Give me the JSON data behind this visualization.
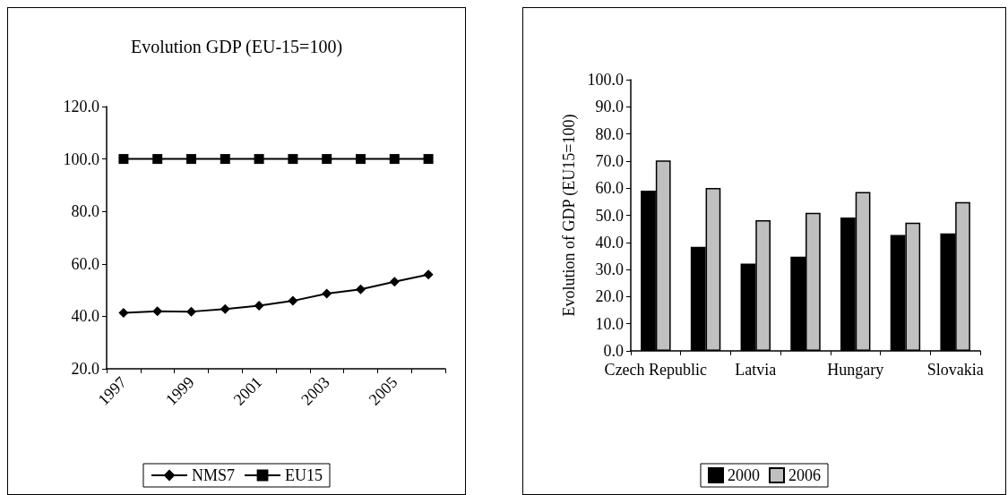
{
  "chart_data": [
    {
      "type": "line",
      "title": "Evolution GDP (EU-15=100)",
      "categories": [
        "1997",
        null,
        "1999",
        null,
        "2001",
        null,
        "2003",
        null,
        "2005",
        null
      ],
      "series": [
        {
          "name": "NMS7",
          "color": "#000000",
          "marker": "diamond",
          "values": [
            41.3,
            41.9,
            41.8,
            42.8,
            44.1,
            45.9,
            48.7,
            50.3,
            53.2,
            55.9
          ]
        },
        {
          "name": "EU15",
          "color": "#000000",
          "marker": "square",
          "values": [
            100,
            100,
            100,
            100,
            100,
            100,
            100,
            100,
            100,
            100
          ]
        }
      ],
      "ylim": [
        20,
        120
      ],
      "yticks": [
        {
          "value": 20,
          "label": "20.0"
        },
        {
          "value": 40,
          "label": "40.0"
        },
        {
          "value": 60,
          "label": "60.0"
        },
        {
          "value": 80,
          "label": "80.0"
        },
        {
          "value": 100,
          "label": "100.0"
        },
        {
          "value": 120,
          "label": "120.0"
        }
      ],
      "grid": false,
      "legend": "bottom",
      "line_style": "solid"
    },
    {
      "type": "bar",
      "ylabel": "Evolution of GDP (EU15=100)",
      "categories": [
        "Czech Republic",
        null,
        "Latvia",
        null,
        "Hungary",
        null,
        "Slovakia"
      ],
      "series": [
        {
          "name": "2000",
          "color": "#000000",
          "values": [
            59.1,
            38.4,
            32.2,
            34.7,
            49.2,
            42.7,
            43.3
          ]
        },
        {
          "name": "2006",
          "color": "#c0c0c0",
          "values": [
            70.2,
            60.1,
            48.2,
            50.9,
            58.6,
            47.3,
            54.9
          ]
        }
      ],
      "ylim": [
        0,
        100
      ],
      "yticks": [
        {
          "value": 0,
          "label": "0.0"
        },
        {
          "value": 10,
          "label": "10.0"
        },
        {
          "value": 20,
          "label": "20.0"
        },
        {
          "value": 30,
          "label": "30.0"
        },
        {
          "value": 40,
          "label": "40.0"
        },
        {
          "value": 50,
          "label": "50.0"
        },
        {
          "value": 60,
          "label": "60.0"
        },
        {
          "value": 70,
          "label": "70.0"
        },
        {
          "value": 80,
          "label": "80.0"
        },
        {
          "value": 90,
          "label": "90.0"
        },
        {
          "value": 100,
          "label": "100.0"
        }
      ],
      "grid": false,
      "legend": "bottom"
    }
  ]
}
